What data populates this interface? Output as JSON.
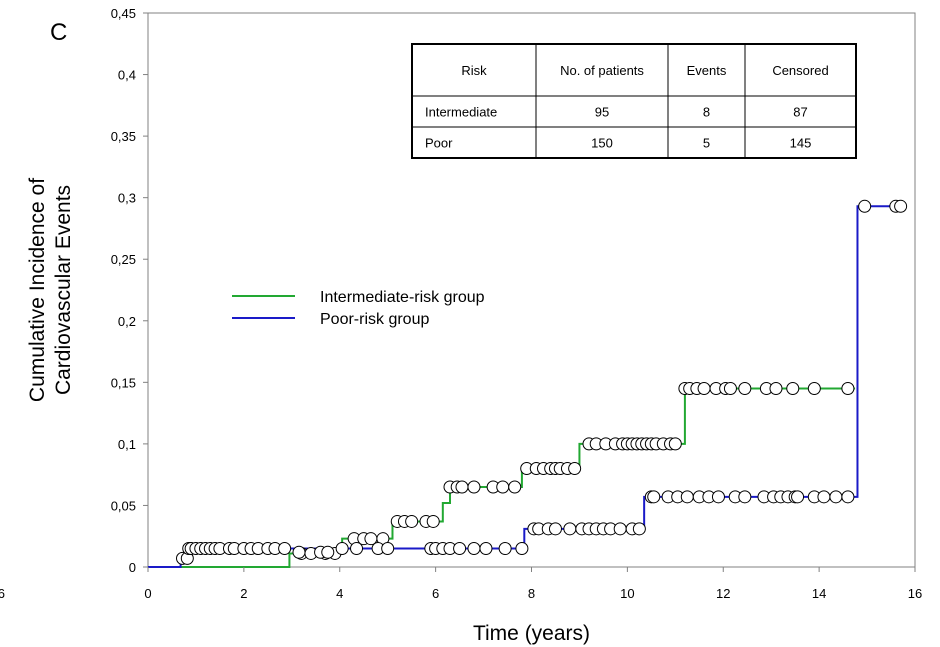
{
  "panel_label": "C",
  "stray_tick": "6",
  "colors": {
    "intermediate": "#22a832",
    "poor": "#1a1ac8",
    "marker_fill": "#ffffff",
    "axis": "#808080"
  },
  "legend": [
    {
      "label": "Intermediate-risk group",
      "color": "#22a832"
    },
    {
      "label": "Poor-risk group",
      "color": "#1a1ac8"
    }
  ],
  "table": {
    "headers": [
      "Risk",
      "No. of patients",
      "Events",
      "Censored"
    ],
    "rows": [
      [
        "Intermediate",
        "95",
        "8",
        "87"
      ],
      [
        "Poor",
        "150",
        "5",
        "145"
      ]
    ]
  },
  "chart_data": {
    "type": "line",
    "step": true,
    "xlabel": "Time (years)",
    "ylabel_lines": [
      "Cumulative Incidence of",
      "Cardiovascular Events"
    ],
    "xlim": [
      0,
      16
    ],
    "ylim": [
      0,
      0.45
    ],
    "x_ticks": [
      "0",
      "2",
      "4",
      "6",
      "8",
      "10",
      "12",
      "14",
      "16"
    ],
    "y_ticks": [
      "0",
      "0,05",
      "0,1",
      "0,15",
      "0,2",
      "0,25",
      "0,3",
      "0,35",
      "0,4",
      "0,45"
    ],
    "series": [
      {
        "name": "Intermediate-risk group",
        "color": "#22a832",
        "steps": [
          [
            0,
            0
          ],
          [
            2.95,
            0.011
          ],
          [
            4.05,
            0.023
          ],
          [
            5.1,
            0.037
          ],
          [
            6.15,
            0.052
          ],
          [
            6.3,
            0.065
          ],
          [
            7.8,
            0.08
          ],
          [
            9.0,
            0.1
          ],
          [
            11.2,
            0.145
          ]
        ],
        "end_x": 14.75,
        "censored": [
          [
            3.2,
            0.011
          ],
          [
            3.4,
            0.011
          ],
          [
            3.7,
            0.011
          ],
          [
            3.9,
            0.011
          ],
          [
            4.3,
            0.023
          ],
          [
            4.5,
            0.023
          ],
          [
            4.65,
            0.023
          ],
          [
            4.9,
            0.023
          ],
          [
            5.2,
            0.037
          ],
          [
            5.35,
            0.037
          ],
          [
            5.5,
            0.037
          ],
          [
            5.8,
            0.037
          ],
          [
            5.95,
            0.037
          ],
          [
            6.3,
            0.065
          ],
          [
            6.45,
            0.065
          ],
          [
            6.55,
            0.065
          ],
          [
            6.8,
            0.065
          ],
          [
            7.2,
            0.065
          ],
          [
            7.4,
            0.065
          ],
          [
            7.65,
            0.065
          ],
          [
            7.9,
            0.08
          ],
          [
            8.1,
            0.08
          ],
          [
            8.25,
            0.08
          ],
          [
            8.4,
            0.08
          ],
          [
            8.5,
            0.08
          ],
          [
            8.6,
            0.08
          ],
          [
            8.75,
            0.08
          ],
          [
            8.9,
            0.08
          ],
          [
            9.2,
            0.1
          ],
          [
            9.35,
            0.1
          ],
          [
            9.55,
            0.1
          ],
          [
            9.75,
            0.1
          ],
          [
            9.9,
            0.1
          ],
          [
            10.0,
            0.1
          ],
          [
            10.1,
            0.1
          ],
          [
            10.2,
            0.1
          ],
          [
            10.3,
            0.1
          ],
          [
            10.4,
            0.1
          ],
          [
            10.5,
            0.1
          ],
          [
            10.6,
            0.1
          ],
          [
            10.75,
            0.1
          ],
          [
            10.9,
            0.1
          ],
          [
            11.0,
            0.1
          ],
          [
            11.2,
            0.145
          ],
          [
            11.3,
            0.145
          ],
          [
            11.45,
            0.145
          ],
          [
            11.6,
            0.145
          ],
          [
            11.85,
            0.145
          ],
          [
            12.05,
            0.145
          ],
          [
            12.15,
            0.145
          ],
          [
            12.45,
            0.145
          ],
          [
            12.9,
            0.145
          ],
          [
            13.1,
            0.145
          ],
          [
            13.45,
            0.145
          ],
          [
            13.9,
            0.145
          ],
          [
            14.6,
            0.145
          ]
        ]
      },
      {
        "name": "Poor-risk group",
        "color": "#1a1ac8",
        "steps": [
          [
            0,
            0
          ],
          [
            0.68,
            0.007
          ],
          [
            0.8,
            0.015
          ],
          [
            7.85,
            0.031
          ],
          [
            10.35,
            0.057
          ],
          [
            14.8,
            0.293
          ]
        ],
        "end_x": 15.75,
        "censored": [
          [
            0.72,
            0.007
          ],
          [
            0.82,
            0.007
          ],
          [
            0.85,
            0.015
          ],
          [
            0.9,
            0.015
          ],
          [
            1.0,
            0.015
          ],
          [
            1.1,
            0.015
          ],
          [
            1.2,
            0.015
          ],
          [
            1.3,
            0.015
          ],
          [
            1.4,
            0.015
          ],
          [
            1.5,
            0.015
          ],
          [
            1.7,
            0.015
          ],
          [
            1.8,
            0.015
          ],
          [
            2.0,
            0.015
          ],
          [
            2.15,
            0.015
          ],
          [
            2.3,
            0.015
          ],
          [
            2.5,
            0.015
          ],
          [
            2.65,
            0.015
          ],
          [
            2.85,
            0.015
          ],
          [
            3.15,
            0.012
          ],
          [
            3.6,
            0.012
          ],
          [
            3.75,
            0.012
          ],
          [
            4.05,
            0.015
          ],
          [
            4.35,
            0.015
          ],
          [
            4.8,
            0.015
          ],
          [
            5.0,
            0.015
          ],
          [
            5.9,
            0.015
          ],
          [
            6.0,
            0.015
          ],
          [
            6.15,
            0.015
          ],
          [
            6.3,
            0.015
          ],
          [
            6.5,
            0.015
          ],
          [
            6.8,
            0.015
          ],
          [
            7.05,
            0.015
          ],
          [
            7.45,
            0.015
          ],
          [
            7.8,
            0.015
          ],
          [
            8.05,
            0.031
          ],
          [
            8.15,
            0.031
          ],
          [
            8.35,
            0.031
          ],
          [
            8.5,
            0.031
          ],
          [
            8.8,
            0.031
          ],
          [
            9.05,
            0.031
          ],
          [
            9.2,
            0.031
          ],
          [
            9.35,
            0.031
          ],
          [
            9.5,
            0.031
          ],
          [
            9.65,
            0.031
          ],
          [
            9.85,
            0.031
          ],
          [
            10.1,
            0.031
          ],
          [
            10.25,
            0.031
          ],
          [
            10.5,
            0.057
          ],
          [
            10.55,
            0.057
          ],
          [
            10.85,
            0.057
          ],
          [
            11.05,
            0.057
          ],
          [
            11.25,
            0.057
          ],
          [
            11.5,
            0.057
          ],
          [
            11.7,
            0.057
          ],
          [
            11.9,
            0.057
          ],
          [
            12.25,
            0.057
          ],
          [
            12.45,
            0.057
          ],
          [
            12.85,
            0.057
          ],
          [
            13.05,
            0.057
          ],
          [
            13.2,
            0.057
          ],
          [
            13.35,
            0.057
          ],
          [
            13.5,
            0.057
          ],
          [
            13.55,
            0.057
          ],
          [
            13.9,
            0.057
          ],
          [
            14.1,
            0.057
          ],
          [
            14.35,
            0.057
          ],
          [
            14.6,
            0.057
          ],
          [
            14.95,
            0.293
          ],
          [
            15.6,
            0.293
          ],
          [
            15.7,
            0.293
          ]
        ]
      }
    ]
  }
}
